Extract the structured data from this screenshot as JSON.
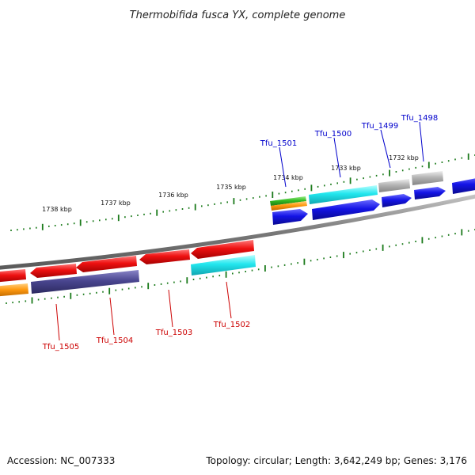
{
  "title": "Thermobifida fusca YX, complete genome",
  "footer": {
    "accession": "Accession: NC_007333",
    "summary": "Topology: circular; Length: 3,642,249 bp; Genes: 3,176"
  },
  "colors": {
    "backbone": "#888888",
    "ticks": "#1a7a1a",
    "label_forward": "#0000cc",
    "label_reverse": "#cc0000",
    "red": "#ee1111",
    "blue": "#1414e6",
    "cyan": "#22e6ee",
    "gray": "#b4b4b4",
    "purple": "#4a4690",
    "orange": "#ff9a10",
    "green": "#33bb22"
  },
  "scale_labels": [
    "1738 kbp",
    "1737 kbp",
    "1736 kbp",
    "1735 kbp",
    "1734 kbp",
    "1733 kbp",
    "1732 kbp"
  ],
  "gene_labels": {
    "forward": [
      "Tfu_1501",
      "Tfu_1500",
      "Tfu_1499",
      "Tfu_1498"
    ],
    "reverse": [
      "Tfu_1505",
      "Tfu_1504",
      "Tfu_1503",
      "Tfu_1502"
    ]
  }
}
